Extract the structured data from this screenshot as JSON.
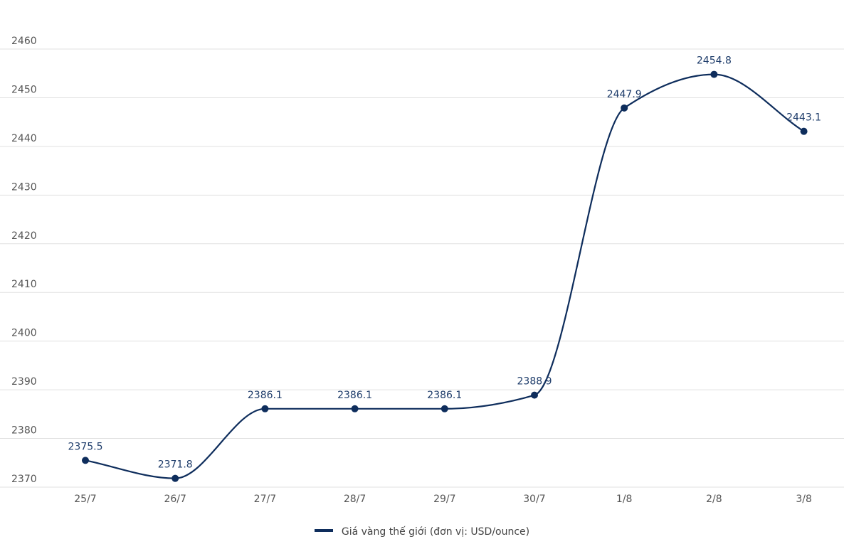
{
  "chart_data": {
    "type": "line",
    "categories": [
      "25/7",
      "26/7",
      "27/7",
      "28/7",
      "29/7",
      "30/7",
      "1/8",
      "2/8",
      "3/8"
    ],
    "series": [
      {
        "name": "Giá vàng thế giới (đơn vị: USD/ounce)",
        "values": [
          2375.5,
          2371.8,
          2386.1,
          2386.1,
          2386.1,
          2388.9,
          2447.9,
          2454.8,
          2443.1
        ],
        "labels": [
          "2375.5",
          "2371.8",
          "2386.1",
          "2386.1",
          "2386.1",
          "2388.9",
          "2447.9",
          "2454.8",
          "2443.1"
        ],
        "color": "#0e2d5c"
      }
    ],
    "ylim": [
      2369,
      2462
    ],
    "yticks": [
      2370,
      2380,
      2390,
      2400,
      2410,
      2420,
      2430,
      2440,
      2450,
      2460
    ],
    "smooth": true,
    "grid": true,
    "legend_position": "bottom-center",
    "grid_color": "#e0e0e0"
  }
}
